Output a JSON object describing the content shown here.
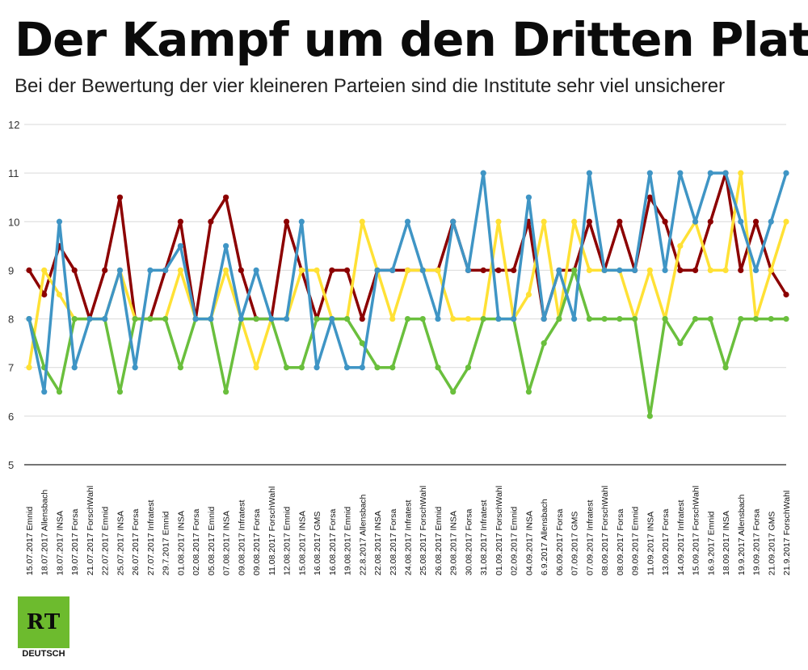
{
  "header": {
    "title": "Der Kampf um den Dritten Platz",
    "subtitle": "Bei der Bewertung der vier kleineren Parteien sind die Institute sehr viel unsicherer"
  },
  "logo": {
    "mark": "RT",
    "label": "DEUTSCH"
  },
  "colors": {
    "red": "#8c0000",
    "yellow": "#ffe135",
    "green": "#6abf3d",
    "blue": "#3f95c5",
    "grid": "#d9d9d9",
    "axis": "#222222"
  },
  "chart_data": {
    "type": "line",
    "title": "Der Kampf um den Dritten Platz",
    "subtitle": "Bei der Bewertung der vier kleineren Parteien sind die Institute sehr viel unsicherer",
    "xlabel": "",
    "ylabel": "",
    "ylim": [
      5,
      12
    ],
    "yticks": [
      5,
      6,
      7,
      8,
      9,
      10,
      11,
      12
    ],
    "grid": true,
    "legend": "none",
    "categories": [
      "15.07.2017 Emnid",
      "18.07.2017 Allensbach",
      "18.07.2017 INSA",
      "19.07.2017 Forsa",
      "21.07.2017 ForschWahl",
      "22.07.2017 Emnid",
      "25.07.2017 INSA",
      "26.07.2017 Forsa",
      "27.07.2017 Infratest",
      "29.7.2017 Emnid",
      "01.08.2017 INSA",
      "02.08.2017 Forsa",
      "05.08.2017 Emnid",
      "07.08.2017 INSA",
      "09.08.2017 Infratest",
      "09.08.2017 Forsa",
      "11.08.2017 ForschWahl",
      "12.08.2017 Emnid",
      "15.08.2017 INSA",
      "16.08.2017 GMS",
      "16.08.2017 Forsa",
      "19.08.2017 Emnid",
      "22.8.2017 Allensbach",
      "22.08.2017 INSA",
      "23.08.2017 Forsa",
      "24.08.2017 Infratest",
      "25.08.2017 ForschWahl",
      "26.08.2017 Emnid",
      "29.08.2017 INSA",
      "30.08.2017 Forsa",
      "31.08.2017 Infratest",
      "01.09.2017 ForschWahl",
      "02.09.2017 Emnid",
      "04.09.2017 INSA",
      "6.9.2017 Allensbach",
      "06.09.2017 Forsa",
      "07.09.2017 GMS",
      "07.09.2017 Infratest",
      "08.09.2017 ForschWahl",
      "08.09.2017 Forsa",
      "09.09.2017 Emnid",
      "11.09.2017 INSA",
      "13.09.2017 Forsa",
      "14.09.2017 Infratest",
      "15.09.2017 ForschWahl",
      "16.9.2017 Emnid",
      "18.09.2017 INSA",
      "19.9.2017 Allensbach",
      "19.09.2017 Forsa",
      "21.09.2017 GMS",
      "21.9.2017 ForschWahl"
    ],
    "series": [
      {
        "color": "#8c0000",
        "values": [
          9,
          8.5,
          9.5,
          9,
          8,
          9,
          10.5,
          8,
          8,
          9,
          10,
          8,
          10,
          10.5,
          9,
          8,
          8,
          10,
          9,
          8,
          9,
          9,
          8,
          9,
          9,
          9,
          9,
          9,
          10,
          9,
          9,
          9,
          9,
          10,
          8,
          9,
          9,
          10,
          9,
          10,
          9,
          10.5,
          10,
          9,
          9,
          10,
          11,
          9,
          10,
          9,
          8.5
        ]
      },
      {
        "color": "#ffe135",
        "values": [
          7,
          9,
          8.5,
          8,
          8,
          8,
          9,
          8,
          8,
          8,
          9,
          8,
          8,
          9,
          8,
          7,
          8,
          8,
          9,
          9,
          8,
          8,
          10,
          9,
          8,
          9,
          9,
          9,
          8,
          8,
          8,
          10,
          8,
          8.5,
          10,
          8,
          10,
          9,
          9,
          9,
          8,
          9,
          8,
          9.5,
          10,
          9,
          9,
          11,
          8,
          9,
          10
        ]
      },
      {
        "color": "#6abf3d",
        "values": [
          8,
          7,
          6.5,
          8,
          8,
          8,
          6.5,
          8,
          8,
          8,
          7,
          8,
          8,
          6.5,
          8,
          8,
          8,
          7,
          7,
          8,
          8,
          8,
          7.5,
          7,
          7,
          8,
          8,
          7,
          6.5,
          7,
          8,
          8,
          8,
          6.5,
          7.5,
          8,
          9,
          8,
          8,
          8,
          8,
          6,
          8,
          7.5,
          8,
          8,
          7,
          8,
          8,
          8,
          8
        ]
      },
      {
        "color": "#3f95c5",
        "values": [
          8,
          6.5,
          10,
          7,
          8,
          8,
          9,
          7,
          9,
          9,
          9.5,
          8,
          8,
          9.5,
          8,
          9,
          8,
          8,
          10,
          7,
          8,
          7,
          7,
          9,
          9,
          10,
          9,
          8,
          10,
          9,
          11,
          8,
          8,
          10.5,
          8,
          9,
          8,
          11,
          9,
          9,
          9,
          11,
          9,
          11,
          10,
          11,
          11,
          10,
          9,
          10,
          11
        ]
      }
    ]
  }
}
